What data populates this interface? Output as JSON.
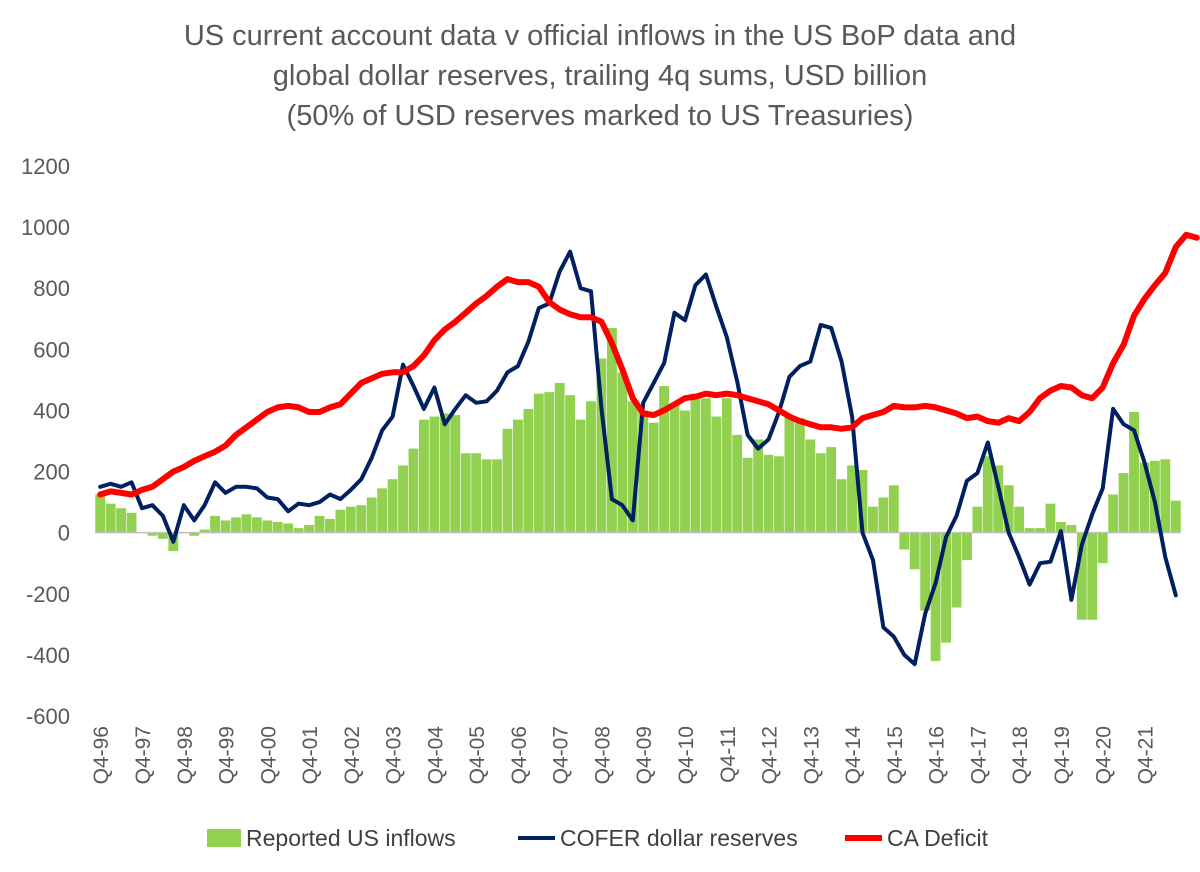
{
  "chart_data": {
    "type": "bar+line",
    "title": [
      "US current account data v official inflows in the US BoP data and",
      "global dollar reserves, trailing 4q sums, USD billion",
      "(50% of USD reserves marked to US Treasuries)"
    ],
    "ylim": [
      -600,
      1200
    ],
    "yticks": [
      -600,
      -400,
      -200,
      0,
      200,
      400,
      600,
      800,
      1000,
      1200
    ],
    "ytick_labels": [
      "-600",
      "-400",
      "-200",
      "0",
      "200",
      "400",
      "600",
      "800",
      "1000",
      "1200"
    ],
    "x_tick_labels": [
      "Q4-96",
      "Q4-97",
      "Q4-98",
      "Q4-99",
      "Q4-00",
      "Q4-01",
      "Q4-02",
      "Q4-03",
      "Q4-04",
      "Q4-05",
      "Q4-06",
      "Q4-07",
      "Q4-08",
      "Q4-09",
      "Q4-10",
      "Q4-11",
      "Q4-12",
      "Q4-13",
      "Q4-14",
      "Q4-15",
      "Q4-16",
      "Q4-17",
      "Q4-18",
      "Q4-19",
      "Q4-20",
      "Q4-21"
    ],
    "quarters_per_year": 4,
    "legend_position": "bottom",
    "series": [
      {
        "name": "Reported US inflows",
        "kind": "bar",
        "color": "#92d050",
        "values": [
          125,
          95,
          80,
          65,
          0,
          -10,
          -20,
          -60,
          0,
          -10,
          10,
          55,
          40,
          50,
          60,
          50,
          40,
          35,
          30,
          15,
          25,
          55,
          45,
          75,
          85,
          90,
          115,
          145,
          175,
          220,
          275,
          370,
          380,
          390,
          385,
          260,
          260,
          240,
          240,
          340,
          370,
          405,
          455,
          460,
          490,
          450,
          370,
          430,
          570,
          670,
          525,
          430,
          400,
          360,
          480,
          420,
          400,
          455,
          440,
          380,
          440,
          320,
          245,
          305,
          255,
          250,
          380,
          375,
          305,
          260,
          280,
          175,
          220,
          205,
          85,
          115,
          155,
          -55,
          -120,
          -255,
          -420,
          -360,
          -245,
          -90,
          85,
          250,
          220,
          155,
          85,
          15,
          15,
          95,
          35,
          25,
          -285,
          -285,
          -100,
          125,
          195,
          395,
          230,
          235,
          240,
          105
        ]
      },
      {
        "name": "COFER dollar reserves",
        "kind": "line",
        "color": "#002060",
        "values": [
          150,
          160,
          150,
          165,
          80,
          90,
          55,
          -30,
          90,
          40,
          90,
          165,
          130,
          150,
          150,
          145,
          115,
          110,
          70,
          95,
          90,
          100,
          125,
          110,
          140,
          175,
          245,
          335,
          380,
          550,
          480,
          405,
          475,
          355,
          405,
          450,
          425,
          430,
          465,
          525,
          545,
          625,
          735,
          750,
          855,
          920,
          800,
          790,
          405,
          110,
          90,
          40,
          425,
          490,
          555,
          720,
          695,
          810,
          845,
          740,
          640,
          495,
          320,
          275,
          305,
          395,
          510,
          545,
          560,
          680,
          670,
          560,
          380,
          0,
          -90,
          -310,
          -340,
          -400,
          -430,
          -265,
          -165,
          -15,
          55,
          170,
          195,
          295,
          150,
          0,
          -80,
          -170,
          -100,
          -95,
          5,
          -220,
          -40,
          60,
          145,
          405,
          355,
          335,
          230,
          100,
          -80,
          -205
        ]
      },
      {
        "name": "CA Deficit",
        "kind": "line",
        "color": "#ff0000",
        "values": [
          125,
          135,
          130,
          125,
          140,
          150,
          175,
          200,
          215,
          235,
          250,
          265,
          285,
          320,
          345,
          370,
          395,
          410,
          415,
          410,
          395,
          395,
          410,
          420,
          455,
          490,
          505,
          520,
          525,
          525,
          545,
          580,
          630,
          665,
          690,
          720,
          750,
          775,
          805,
          830,
          820,
          820,
          805,
          755,
          730,
          715,
          705,
          705,
          690,
          620,
          535,
          440,
          390,
          385,
          400,
          420,
          440,
          445,
          455,
          450,
          455,
          450,
          440,
          430,
          420,
          400,
          380,
          365,
          355,
          345,
          345,
          340,
          345,
          375,
          385,
          395,
          415,
          410,
          410,
          415,
          410,
          400,
          390,
          375,
          380,
          365,
          360,
          375,
          365,
          395,
          440,
          465,
          480,
          475,
          450,
          440,
          475,
          555,
          615,
          710,
          765,
          810,
          850,
          935,
          975,
          965
        ]
      }
    ]
  }
}
